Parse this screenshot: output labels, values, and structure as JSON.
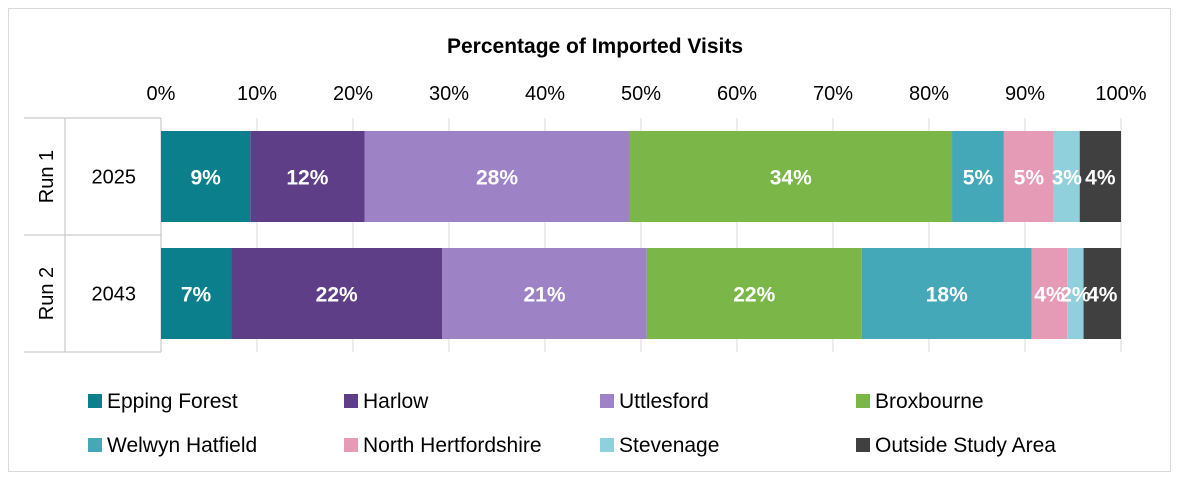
{
  "chart_data": {
    "type": "bar",
    "orientation": "horizontal",
    "stacked": "percent",
    "title": "Percentage of Imported Visits",
    "xlim": [
      0,
      100
    ],
    "x_ticks": [
      "0%",
      "10%",
      "20%",
      "30%",
      "40%",
      "50%",
      "60%",
      "70%",
      "80%",
      "90%",
      "100%"
    ],
    "grid": true,
    "legend_position": "bottom",
    "rows": [
      {
        "group": "Run 1",
        "category": "2025"
      },
      {
        "group": "Run 2",
        "category": "2043"
      }
    ],
    "series": [
      {
        "name": "Epping Forest",
        "color": "#0b7f8c",
        "values": [
          9.3,
          7.3
        ],
        "labels": [
          "9%",
          "7%"
        ]
      },
      {
        "name": "Harlow",
        "color": "#5e3e86",
        "values": [
          11.9,
          22.0
        ],
        "labels": [
          "12%",
          "22%"
        ]
      },
      {
        "name": "Uttlesford",
        "color": "#9d82c6",
        "values": [
          27.6,
          21.3
        ],
        "labels": [
          "28%",
          "21%"
        ]
      },
      {
        "name": "Broxbourne",
        "color": "#7ab648",
        "values": [
          33.6,
          22.4
        ],
        "labels": [
          "34%",
          "22%"
        ]
      },
      {
        "name": "Welwyn Hatfield",
        "color": "#44a8b8",
        "values": [
          5.4,
          17.7
        ],
        "labels": [
          "5%",
          "18%"
        ]
      },
      {
        "name": "North Hertfordshire",
        "color": "#e59ab5",
        "values": [
          5.2,
          3.7
        ],
        "labels": [
          "5%",
          "4%"
        ]
      },
      {
        "name": "Stevenage",
        "color": "#90d0dc",
        "values": [
          2.7,
          1.7
        ],
        "labels": [
          "3%",
          "2%"
        ]
      },
      {
        "name": "Outside Study Area",
        "color": "#404040",
        "values": [
          4.3,
          3.9
        ],
        "labels": [
          "4%",
          "4%"
        ]
      }
    ]
  }
}
